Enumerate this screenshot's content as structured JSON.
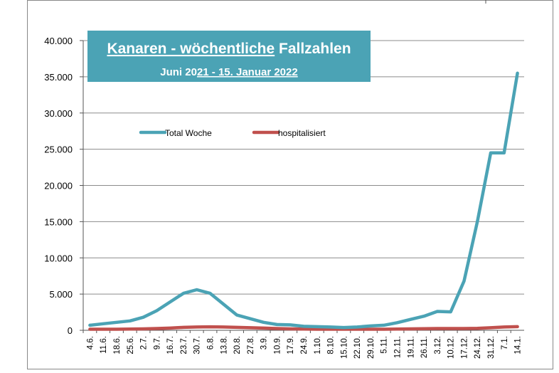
{
  "chart_data": {
    "type": "line",
    "title_parts": {
      "underlined": "Kanaren - wöchentliche",
      "plain": " Fallzahlen"
    },
    "subtitle_parts": {
      "plain": "Juni 20",
      "underlined": "21 - 15. Januar 2022"
    },
    "categories": [
      "4.6.",
      "11.6.",
      "18.6.",
      "25.6.",
      "2.7.",
      "9.7.",
      "16.7.",
      "23.7.",
      "30.7.",
      "6.8.",
      "13.8.",
      "20.8.",
      "27.8.",
      "3.9.",
      "10.9.",
      "17.9.",
      "24.9.",
      "1.10.",
      "8.10.",
      "15.10.",
      "22.10.",
      "29.10.",
      "5.11.",
      "12.11.",
      "19.11.",
      "26.11.",
      "3.12.",
      "10.12.",
      "17.12.",
      "24.12.",
      "31.12.",
      "7.1.",
      "14.1."
    ],
    "series": [
      {
        "name": "Total Woche",
        "color": "#4BA3B5",
        "values": [
          700,
          900,
          1100,
          1300,
          1800,
          2700,
          3900,
          5100,
          5600,
          5100,
          3600,
          2100,
          1600,
          1100,
          800,
          750,
          550,
          500,
          450,
          380,
          450,
          600,
          700,
          1050,
          1500,
          1950,
          2600,
          2550,
          6800,
          15000,
          24500,
          24500,
          35500
        ]
      },
      {
        "name": "hospitalisiert",
        "color": "#C0504D",
        "values": [
          150,
          150,
          150,
          180,
          200,
          250,
          300,
          400,
          450,
          480,
          450,
          400,
          350,
          300,
          250,
          200,
          180,
          150,
          150,
          150,
          150,
          150,
          150,
          180,
          200,
          220,
          250,
          250,
          250,
          280,
          350,
          450,
          500
        ]
      }
    ],
    "y_ticks": [
      "0",
      "5.000",
      "10.000",
      "15.000",
      "20.000",
      "25.000",
      "30.000",
      "35.000",
      "40.000"
    ],
    "ylim": [
      0,
      40000
    ],
    "legend_placement": "upper-left-inside",
    "grid": "horizontal",
    "title_box_color": "#4BA3B5"
  }
}
